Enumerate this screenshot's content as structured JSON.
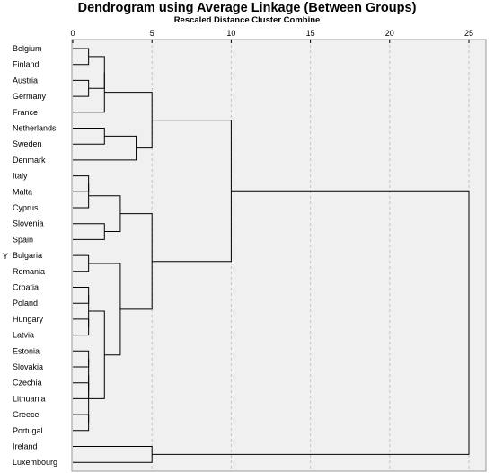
{
  "chart_data": {
    "type": "dendrogram",
    "title": "Dendrogram using Average Linkage (Between Groups)",
    "subtitle": "Rescaled Distance Cluster Combine",
    "ylabel": "Y",
    "xlim": [
      0,
      25
    ],
    "x_ticks": [
      0,
      5,
      10,
      15,
      20,
      25
    ],
    "grid": true,
    "leaves": [
      "Belgium",
      "Finland",
      "Austria",
      "Germany",
      "France",
      "Netherlands",
      "Sweden",
      "Denmark",
      "Italy",
      "Malta",
      "Cyprus",
      "Slovenia",
      "Spain",
      "Bulgaria",
      "Romania",
      "Croatia",
      "Poland",
      "Hungary",
      "Latvia",
      "Estonia",
      "Slovakia",
      "Czechia",
      "Lithuania",
      "Greece",
      "Portugal",
      "Ireland",
      "Luxembourg"
    ],
    "merges": [
      {
        "a": 0,
        "b": 1,
        "height": 1
      },
      {
        "a": 2,
        "b": 3,
        "height": 1
      },
      {
        "a": "L0",
        "b": "L1",
        "height": 2
      },
      {
        "a": "L2",
        "b": 4,
        "height": 2
      },
      {
        "a": 5,
        "b": 6,
        "height": 2
      },
      {
        "a": "L4",
        "b": 7,
        "height": 4
      },
      {
        "a": "L3",
        "b": "L5",
        "height": 5
      },
      {
        "a": 8,
        "b": 9,
        "height": 1
      },
      {
        "a": "L7",
        "b": 10,
        "height": 1
      },
      {
        "a": 11,
        "b": 12,
        "height": 2
      },
      {
        "a": "L8",
        "b": "L9",
        "height": 3
      },
      {
        "a": 13,
        "b": 14,
        "height": 1
      },
      {
        "a": 15,
        "b": 16,
        "height": 1
      },
      {
        "a": 17,
        "b": 18,
        "height": 1
      },
      {
        "a": "L12",
        "b": "L13",
        "height": 1
      },
      {
        "a": 19,
        "b": 20,
        "height": 1
      },
      {
        "a": 21,
        "b": 22,
        "height": 1
      },
      {
        "a": 23,
        "b": 24,
        "height": 1
      },
      {
        "a": "L15",
        "b": "L16",
        "height": 1
      },
      {
        "a": "L18",
        "b": "L17",
        "height": 1
      },
      {
        "a": "L14",
        "b": "L19",
        "height": 2
      },
      {
        "a": "L11",
        "b": "L20",
        "height": 3
      },
      {
        "a": "L10",
        "b": "L21",
        "height": 5
      },
      {
        "a": "L6",
        "b": "L22",
        "height": 10
      },
      {
        "a": 25,
        "b": 26,
        "height": 5
      },
      {
        "a": "L23",
        "b": "L24",
        "height": 25
      }
    ]
  }
}
